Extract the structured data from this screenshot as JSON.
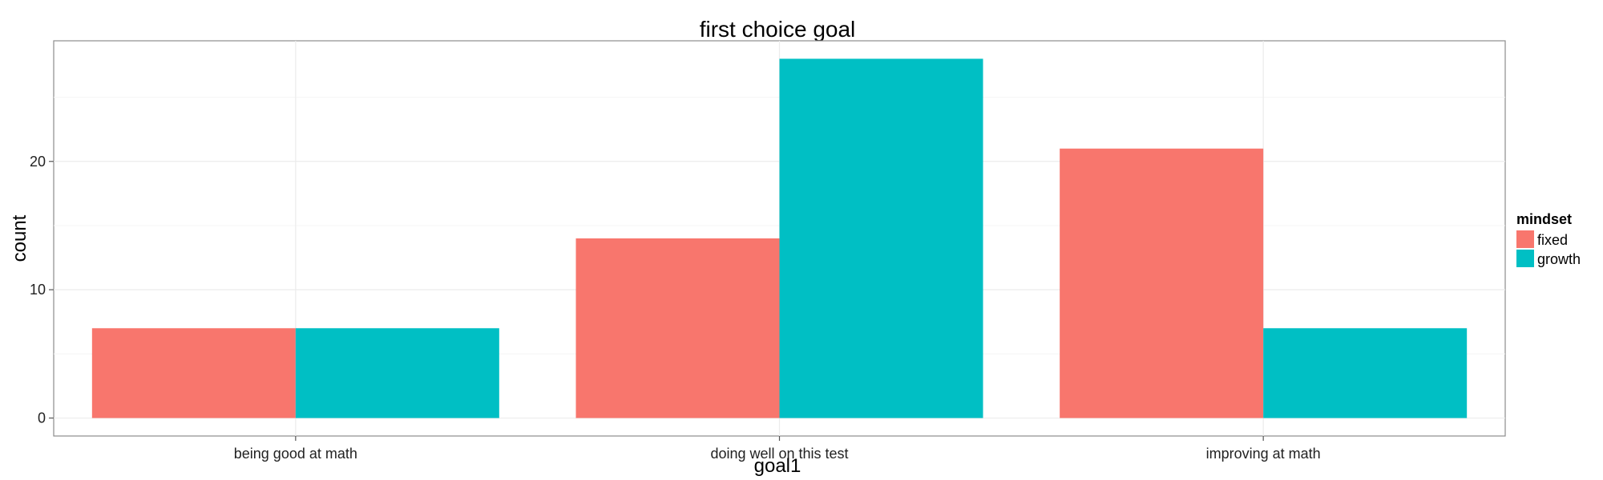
{
  "chart_data": {
    "type": "bar",
    "title": "first choice goal",
    "xlabel": "goal1",
    "ylabel": "count",
    "categories": [
      "being good at math",
      "doing well on this test",
      "improving at math"
    ],
    "series": [
      {
        "name": "fixed",
        "values": [
          7,
          14,
          21
        ],
        "color": "#F8766D"
      },
      {
        "name": "growth",
        "values": [
          7,
          28,
          7
        ],
        "color": "#00BFC4"
      }
    ],
    "ylim": [
      -1.4,
      29.4
    ],
    "yticks": [
      0,
      10,
      20
    ],
    "legend": {
      "title": "mindset",
      "position": "right"
    },
    "grid": true
  }
}
